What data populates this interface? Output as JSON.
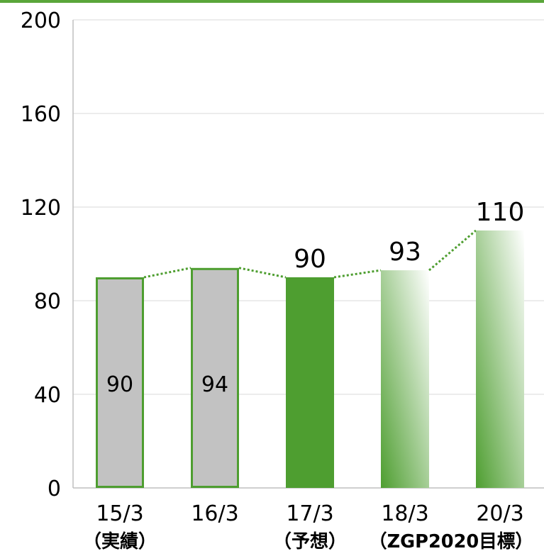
{
  "chart_data": {
    "type": "bar",
    "categories": [
      "15/3",
      "16/3",
      "17/3",
      "18/3",
      "20/3"
    ],
    "category_sublabels": [
      "（実績）",
      "",
      "（予想）",
      "",
      "（ZGP2020目標）"
    ],
    "values": [
      90,
      94,
      90,
      93,
      110
    ],
    "data_labels": [
      "90",
      "94",
      "90",
      "93",
      "110"
    ],
    "data_label_position": [
      "inside",
      "inside",
      "above",
      "above",
      "above"
    ],
    "bar_styles": [
      "gray-outlined",
      "gray-outlined",
      "solid-green",
      "gradient-green",
      "gradient-green"
    ],
    "ylim": [
      0,
      200
    ],
    "yticks": [
      "0",
      "40",
      "80",
      "120",
      "160",
      "200"
    ],
    "grid": true,
    "connector_line": "dotted",
    "colors": {
      "green": "#4e9e30",
      "gray": "#c2c2c2",
      "gridline": "#d9d9d9",
      "axis": "#bfbfbf",
      "top_rule": "#5aa63a"
    }
  }
}
